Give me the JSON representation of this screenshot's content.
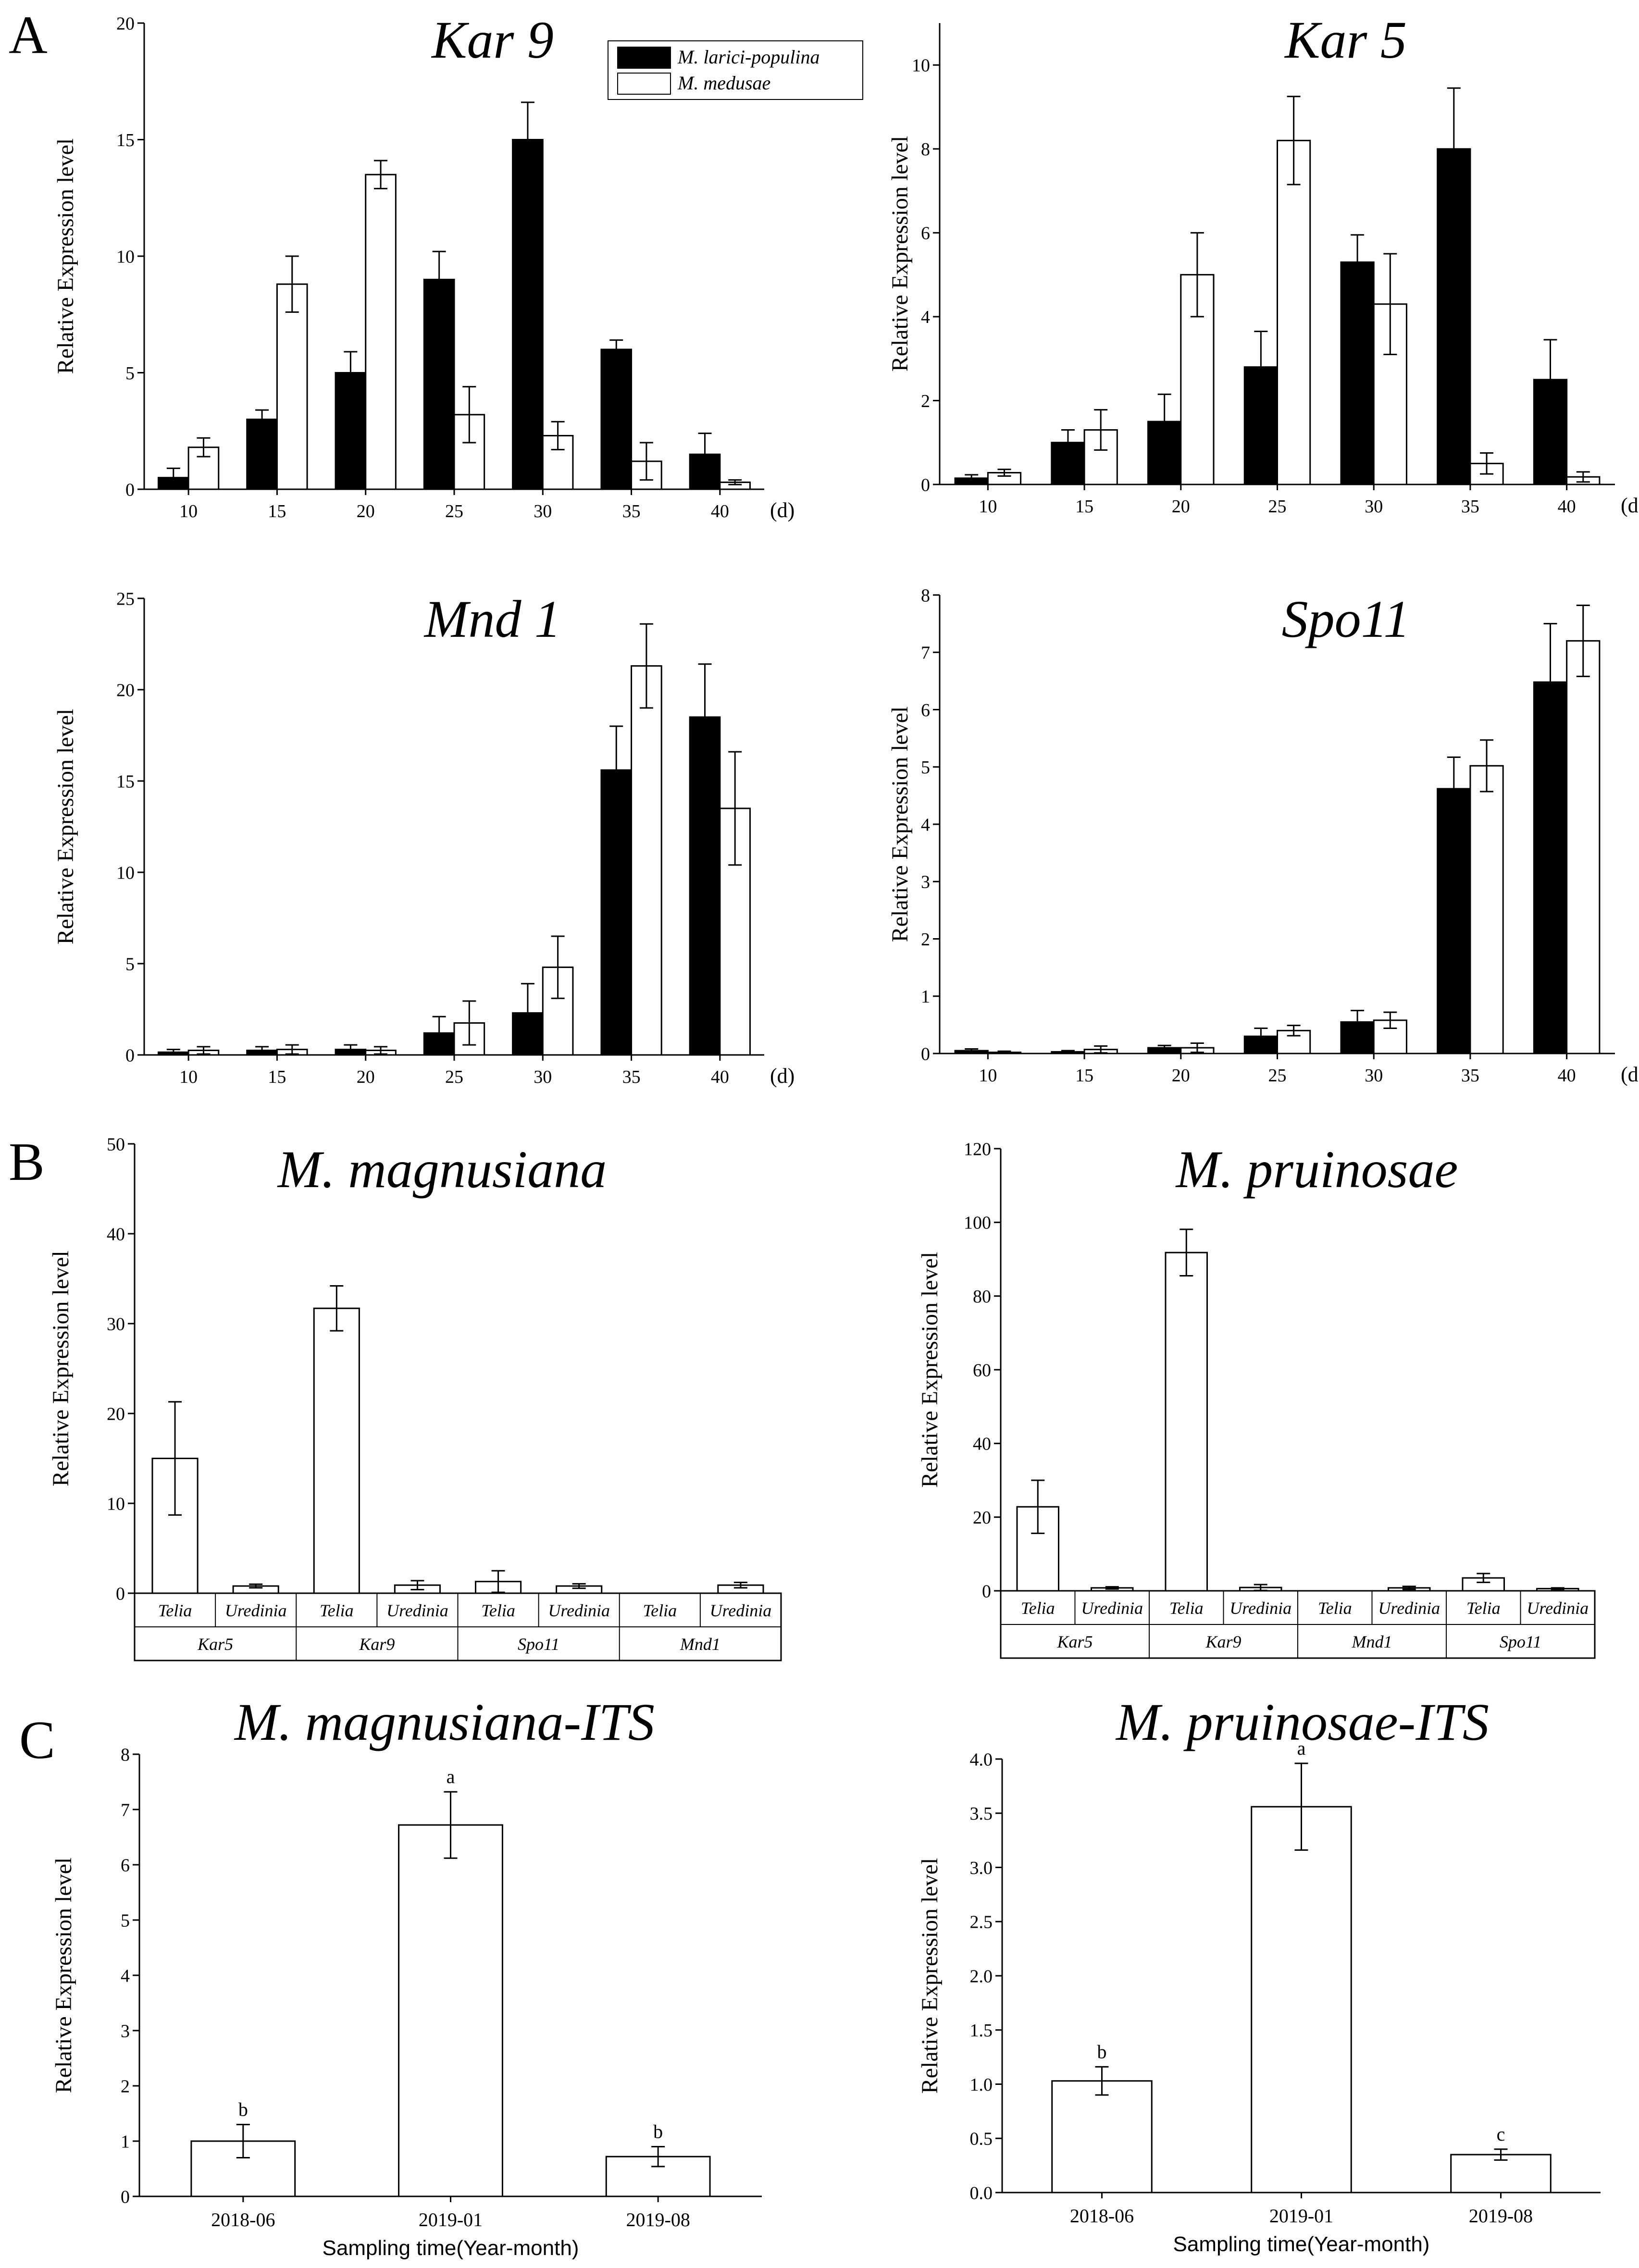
{
  "figure": {
    "section_labels": [
      "A",
      "B",
      "C"
    ],
    "day_unit": "(d)",
    "legend": [
      "M. larici-populina",
      "M. medusae"
    ]
  },
  "colors": {
    "series_dark": "#000000",
    "series_light": "#ffffff",
    "axis": "#000000",
    "background": "#ffffff"
  },
  "chart_data": [
    {
      "type": "bar",
      "title": "Kar 9",
      "ylabel": "Relative Expression level",
      "xlabel": "(d)",
      "categories": [
        "10",
        "15",
        "20",
        "25",
        "30",
        "35",
        "40"
      ],
      "ylim": [
        0,
        20
      ],
      "yticks": [
        0,
        5,
        10,
        15,
        20
      ],
      "series": [
        {
          "name": "M. larici-populina",
          "values": [
            0.5,
            3,
            5,
            9,
            15,
            6,
            1.5
          ],
          "errors": [
            0.4,
            0.4,
            0.9,
            1.2,
            1.6,
            0.4,
            0.9
          ]
        },
        {
          "name": "M. medusae",
          "values": [
            1.8,
            8.8,
            13.5,
            3.2,
            2.3,
            1.2,
            0.3
          ],
          "errors": [
            0.4,
            1.2,
            0.6,
            1.2,
            0.6,
            0.8,
            0.1
          ]
        }
      ],
      "legend_position": "top-right"
    },
    {
      "type": "bar",
      "title": "Kar 5",
      "ylabel": "Relative Expression level",
      "xlabel": "(d)",
      "categories": [
        "10",
        "15",
        "20",
        "25",
        "30",
        "35",
        "40"
      ],
      "ylim": [
        0,
        11
      ],
      "yticks": [
        0,
        2,
        4,
        6,
        8,
        10
      ],
      "series": [
        {
          "name": "M. larici-populina",
          "values": [
            0.15,
            1.0,
            1.5,
            2.8,
            5.3,
            8.0,
            2.5
          ],
          "errors": [
            0.08,
            0.3,
            0.65,
            0.85,
            0.65,
            1.45,
            0.95
          ]
        },
        {
          "name": "M. medusae",
          "values": [
            0.28,
            1.3,
            5.0,
            8.2,
            4.3,
            0.5,
            0.18
          ],
          "errors": [
            0.08,
            0.48,
            1.0,
            1.05,
            1.2,
            0.25,
            0.12
          ]
        }
      ]
    },
    {
      "type": "bar",
      "title": "Mnd 1",
      "ylabel": "Relative Expression level",
      "xlabel": "(d)",
      "categories": [
        "10",
        "15",
        "20",
        "25",
        "30",
        "35",
        "40"
      ],
      "ylim": [
        0,
        25
      ],
      "yticks": [
        0,
        5,
        10,
        15,
        20,
        25
      ],
      "series": [
        {
          "name": "M. larici-populina",
          "values": [
            0.15,
            0.25,
            0.3,
            1.2,
            2.3,
            15.6,
            18.5
          ],
          "errors": [
            0.15,
            0.2,
            0.25,
            0.9,
            1.6,
            2.4,
            2.9
          ]
        },
        {
          "name": "M. medusae",
          "values": [
            0.25,
            0.3,
            0.25,
            1.75,
            4.8,
            21.3,
            13.5
          ],
          "errors": [
            0.2,
            0.25,
            0.2,
            1.2,
            1.7,
            2.3,
            3.1
          ]
        }
      ]
    },
    {
      "type": "bar",
      "title": "Spo11",
      "ylabel": "Relative Expression level",
      "xlabel": "(d)",
      "categories": [
        "10",
        "15",
        "20",
        "25",
        "30",
        "35",
        "40"
      ],
      "ylim": [
        0,
        8
      ],
      "yticks": [
        0,
        1,
        2,
        3,
        4,
        5,
        6,
        7,
        8
      ],
      "series": [
        {
          "name": "M. larici-populina",
          "values": [
            0.05,
            0.03,
            0.1,
            0.3,
            0.55,
            4.62,
            6.48
          ],
          "errors": [
            0.03,
            0.02,
            0.04,
            0.14,
            0.2,
            0.55,
            1.02
          ]
        },
        {
          "name": "M. medusae",
          "values": [
            0.02,
            0.07,
            0.1,
            0.4,
            0.58,
            5.02,
            7.2
          ],
          "errors": [
            0.02,
            0.06,
            0.08,
            0.09,
            0.14,
            0.45,
            0.62
          ]
        }
      ]
    },
    {
      "type": "bar",
      "title": "M. magnusiana",
      "ylabel": "Relative Expression level",
      "ylim": [
        0,
        50
      ],
      "yticks": [
        0,
        10,
        20,
        30,
        40,
        50
      ],
      "groups": [
        "Kar5",
        "Kar9",
        "Spo11",
        "Mnd1"
      ],
      "subcategories": [
        "Telia",
        "Uredinia"
      ],
      "values": [
        [
          15,
          0.8
        ],
        [
          31.7,
          0.9
        ],
        [
          1.3,
          0.8
        ],
        [
          null,
          0.9
        ]
      ],
      "errors": [
        [
          6.3,
          0.2
        ],
        [
          2.5,
          0.5
        ],
        [
          1.2,
          0.25
        ],
        [
          null,
          0.3
        ]
      ]
    },
    {
      "type": "bar",
      "title": "M. pruinosae",
      "ylabel": "Relative Expression level",
      "ylim": [
        0,
        120
      ],
      "yticks": [
        0,
        20,
        40,
        60,
        80,
        100,
        120
      ],
      "groups": [
        "Kar5",
        "Kar9",
        "Mnd1",
        "Spo11"
      ],
      "subcategories": [
        "Telia",
        "Uredinia"
      ],
      "values": [
        [
          22.8,
          0.8
        ],
        [
          91.8,
          0.9
        ],
        [
          null,
          0.8
        ],
        [
          3.5,
          0.6
        ]
      ],
      "errors": [
        [
          7.2,
          0.3
        ],
        [
          6.3,
          0.8
        ],
        [
          null,
          0.4
        ],
        [
          1.2,
          0.2
        ]
      ]
    },
    {
      "type": "bar",
      "title": "M. magnusiana-ITS",
      "ylabel": "Relative Expression level",
      "xlabel": "Sampling time(Year-month)",
      "categories": [
        "2018-06",
        "2019-01",
        "2019-08"
      ],
      "values": [
        1.0,
        6.72,
        0.72
      ],
      "errors": [
        0.3,
        0.6,
        0.18
      ],
      "significance": [
        "b",
        "a",
        "b"
      ],
      "ylim": [
        0,
        8
      ],
      "yticks": [
        0,
        1,
        2,
        3,
        4,
        5,
        6,
        7,
        8
      ]
    },
    {
      "type": "bar",
      "title": "M. pruinosae-ITS",
      "ylabel": "Relative Expression level",
      "xlabel": "Sampling time(Year-month)",
      "categories": [
        "2018-06",
        "2019-01",
        "2019-08"
      ],
      "values": [
        1.03,
        3.56,
        0.35
      ],
      "errors": [
        0.13,
        0.4,
        0.05
      ],
      "significance": [
        "b",
        "a",
        "c"
      ],
      "ylim": [
        0,
        4
      ],
      "yticks": [
        "0.0",
        "0.5",
        "1.0",
        "1.5",
        "2.0",
        "2.5",
        "3.0",
        "3.5",
        "4.0"
      ]
    }
  ]
}
